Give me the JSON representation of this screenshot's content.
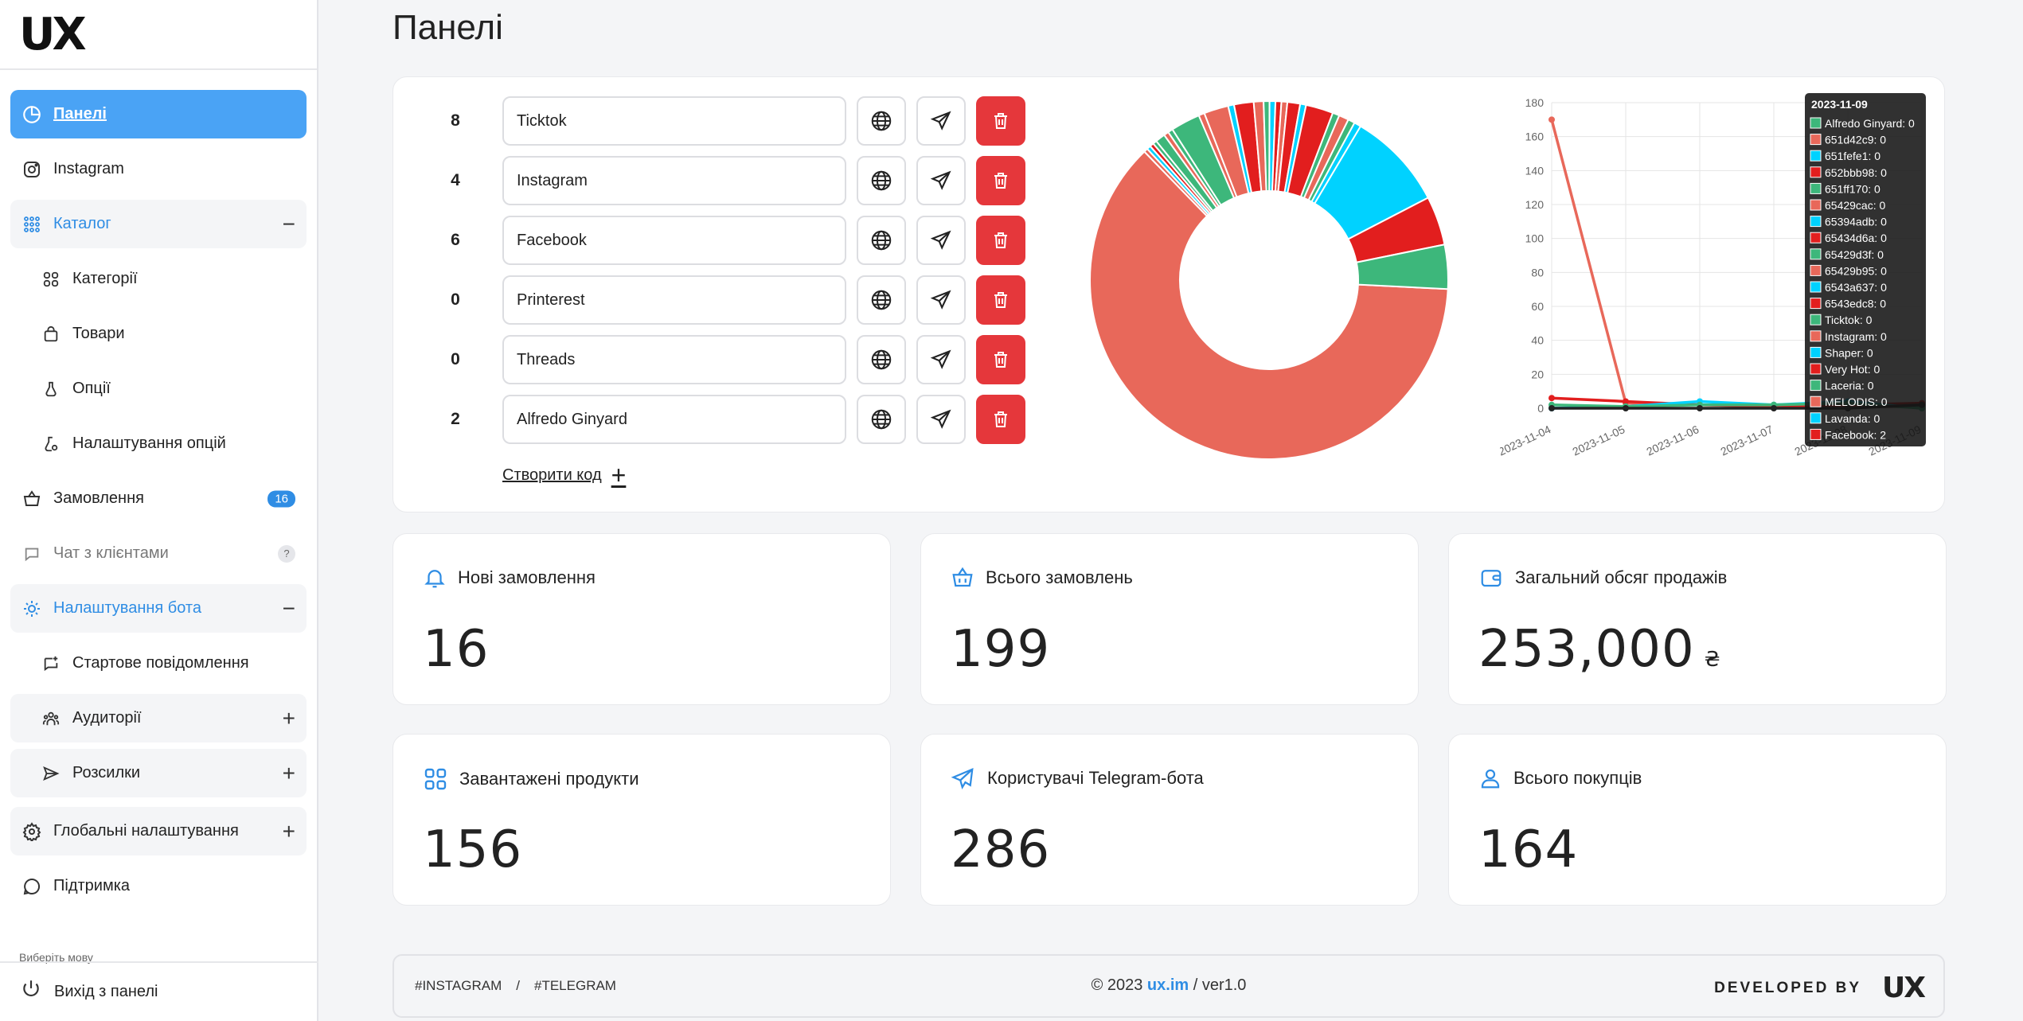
{
  "logo": "UX",
  "sidebar": {
    "items": [
      {
        "label": "Панелі",
        "icon": "pie-icon"
      },
      {
        "label": "Instagram",
        "icon": "instagram-icon"
      },
      {
        "label": "Каталог",
        "icon": "grid-icon"
      },
      {
        "label": "Категорії",
        "icon": "categories-icon"
      },
      {
        "label": "Товари",
        "icon": "bag-icon"
      },
      {
        "label": "Опції",
        "icon": "flask-icon"
      },
      {
        "label": "Налаштування опцій",
        "icon": "flask-settings-icon"
      },
      {
        "label": "Замовлення",
        "icon": "basket-icon",
        "badge": "16"
      },
      {
        "label": "Чат з клієнтами",
        "icon": "chat-icon",
        "badge": "?"
      },
      {
        "label": "Налаштування бота",
        "icon": "bot-gear-icon"
      },
      {
        "label": "Стартове повідомлення",
        "icon": "message-add-icon"
      },
      {
        "label": "Аудиторії",
        "icon": "audience-icon"
      },
      {
        "label": "Розсилки",
        "icon": "send-icon"
      },
      {
        "label": "Глобальні налаштування",
        "icon": "gear-icon"
      },
      {
        "label": "Підтримка",
        "icon": "support-icon"
      }
    ],
    "lang_label": "Виберіть мову",
    "logout": "Вихід з панелі"
  },
  "page_title": "Панелі",
  "codes": [
    {
      "count": "8",
      "name": "Ticktok"
    },
    {
      "count": "4",
      "name": "Instagram"
    },
    {
      "count": "6",
      "name": "Facebook"
    },
    {
      "count": "0",
      "name": "Printerest"
    },
    {
      "count": "0",
      "name": "Threads"
    },
    {
      "count": "2",
      "name": "Alfredo Ginyard"
    }
  ],
  "create_code": "Створити код",
  "chart_data": [
    {
      "type": "pie",
      "values": [
        70,
        0.4,
        0.4,
        0.4,
        0.4,
        1,
        0.5,
        0.5,
        3,
        0.6,
        2.5,
        0.6,
        2,
        1,
        0.6,
        0.6,
        0.6,
        0.6,
        1.3,
        0.6,
        2.8,
        0.7,
        1,
        0.7,
        0.7,
        10,
        5,
        4.5
      ],
      "colors": [
        "#e8685a",
        "#e8685a",
        "#00d2ff",
        "#e21e1e",
        "#3db77b",
        "#3db77b",
        "#e8685a",
        "#3db77b",
        "#3db77b",
        "#e8685a",
        "#e8685a",
        "#00d2ff",
        "#e21e1e",
        "#e8685a",
        "#3db77b",
        "#00d2ff",
        "#e21e1e",
        "#e8685a",
        "#e21e1e",
        "#00d2ff",
        "#e21e1e",
        "#3db77b",
        "#e8685a",
        "#3db77b",
        "#00d2ff",
        "#00d2ff",
        "#e21e1e",
        "#3db77b"
      ]
    },
    {
      "type": "line",
      "x": [
        "2023-11-04",
        "2023-11-05",
        "2023-11-06",
        "2023-11-07",
        "2023-11-08",
        "2023-11-09"
      ],
      "ylim": [
        0,
        180
      ],
      "yticks": [
        "180",
        "160",
        "140",
        "120",
        "100",
        "80",
        "60",
        "40",
        "20",
        "0"
      ],
      "series": [
        {
          "color": "#e8685a",
          "values": [
            170,
            3,
            2,
            1,
            1,
            1
          ]
        },
        {
          "color": "#e21e1e",
          "values": [
            6,
            4,
            2,
            1,
            2,
            3
          ]
        },
        {
          "color": "#00d2ff",
          "values": [
            0,
            1,
            4,
            2,
            4,
            0
          ]
        },
        {
          "color": "#3db77b",
          "values": [
            2,
            1,
            2,
            2,
            3,
            0
          ]
        },
        {
          "color": "#222222",
          "values": [
            0,
            0,
            0,
            0,
            0,
            2
          ]
        }
      ],
      "tooltip": {
        "title": "2023-11-09",
        "rows": [
          {
            "label": "Alfredo Ginyard: 0",
            "color": "#3db77b"
          },
          {
            "label": "651d42c9: 0",
            "color": "#e8685a"
          },
          {
            "label": "651fefe1: 0",
            "color": "#00d2ff"
          },
          {
            "label": "652bbb98: 0",
            "color": "#e21e1e"
          },
          {
            "label": "651ff170: 0",
            "color": "#3db77b"
          },
          {
            "label": "65429cac: 0",
            "color": "#e8685a"
          },
          {
            "label": "65394adb: 0",
            "color": "#00d2ff"
          },
          {
            "label": "65434d6a: 0",
            "color": "#e21e1e"
          },
          {
            "label": "65429d3f: 0",
            "color": "#3db77b"
          },
          {
            "label": "65429b95: 0",
            "color": "#e8685a"
          },
          {
            "label": "6543a637: 0",
            "color": "#00d2ff"
          },
          {
            "label": "6543edc8: 0",
            "color": "#e21e1e"
          },
          {
            "label": "Ticktok: 0",
            "color": "#3db77b"
          },
          {
            "label": "Instagram: 0",
            "color": "#e8685a"
          },
          {
            "label": "Shaper: 0",
            "color": "#00d2ff"
          },
          {
            "label": "Very Hot: 0",
            "color": "#e21e1e"
          },
          {
            "label": "Laceria: 0",
            "color": "#3db77b"
          },
          {
            "label": "MELODIS: 0",
            "color": "#e8685a"
          },
          {
            "label": "Lavanda: 0",
            "color": "#00d2ff"
          },
          {
            "label": "Facebook: 2",
            "color": "#e21e1e"
          }
        ]
      }
    }
  ],
  "stats": [
    {
      "label": "Нові замовлення",
      "value": "16",
      "icon": "bell-icon"
    },
    {
      "label": "Всього замовлень",
      "value": "199",
      "icon": "basket-icon"
    },
    {
      "label": "Загальний обсяг продажів",
      "value": "253,000",
      "currency": "₴",
      "icon": "wallet-icon"
    },
    {
      "label": "Завантажені продукти",
      "value": "156",
      "icon": "grid-icon"
    },
    {
      "label": "Користувачі Telegram-бота",
      "value": "286",
      "icon": "telegram-icon"
    },
    {
      "label": "Всього покупців",
      "value": "164",
      "icon": "user-icon"
    }
  ],
  "footer": {
    "tag1": "#INSTAGRAM",
    "sep": "/",
    "tag2": "#TELEGRAM",
    "copyright": "© 2023",
    "link": "ux.im",
    "version": "/ ver1.0",
    "developed_by": "DEVELOPED BY",
    "mini_logo": "UX"
  }
}
